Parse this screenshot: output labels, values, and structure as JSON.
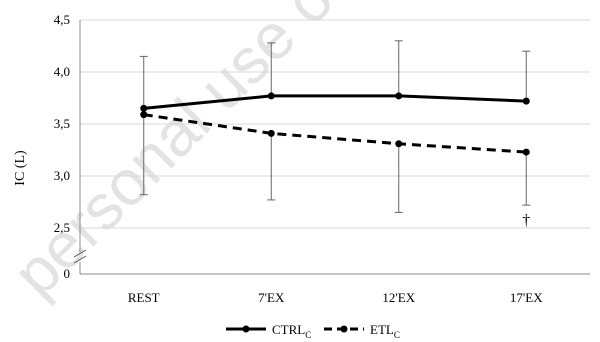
{
  "chart_data": {
    "type": "line",
    "ylabel": "IC (L)",
    "xlabel": "",
    "categories": [
      "REST",
      "7'EX",
      "12'EX",
      "17'EX"
    ],
    "yticks": [
      "4,5",
      "4,0",
      "3,5",
      "3,0",
      "2,5",
      "0"
    ],
    "ylim": [
      2.5,
      4.5
    ],
    "axis_break": true,
    "grid": true,
    "legend_position": "bottom",
    "series": [
      {
        "name": "CTRL",
        "subscript": "C",
        "style": "solid",
        "color": "#000000",
        "values": [
          3.65,
          3.77,
          3.77,
          3.72
        ],
        "error_upper": [
          4.15,
          4.28,
          4.3,
          4.2
        ]
      },
      {
        "name": "ETL",
        "subscript": "C",
        "style": "dashed",
        "color": "#000000",
        "values": [
          3.59,
          3.41,
          3.31,
          3.23
        ],
        "error_lower": [
          2.82,
          2.77,
          2.65,
          2.72
        ]
      }
    ],
    "annotations": [
      {
        "text": "†",
        "category": "17'EX"
      }
    ]
  },
  "watermark": "personal use only"
}
